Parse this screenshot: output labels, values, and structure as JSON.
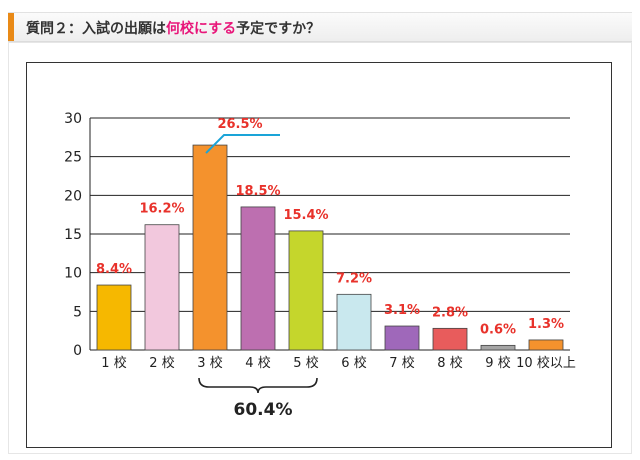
{
  "question": {
    "prefix": "質問２：入試の出願は",
    "highlight": "何校にする",
    "suffix": "予定ですか？"
  },
  "colors": {
    "accent": "#e98a17",
    "highlight": "#e8177a",
    "value_label": "#e8322b",
    "callout_line": "#1aa4d8"
  },
  "chart_data": {
    "type": "bar",
    "title": "",
    "xlabel": "",
    "ylabel": "",
    "ylim": [
      0,
      30
    ],
    "yticks": [
      "0",
      "5",
      "10",
      "15",
      "20",
      "25",
      "30"
    ],
    "grid": true,
    "categories": [
      "1 校",
      "2 校",
      "3 校",
      "4 校",
      "5 校",
      "6 校",
      "7 校",
      "8 校",
      "9 校",
      "10 校以上"
    ],
    "values": [
      8.4,
      16.2,
      26.5,
      18.5,
      15.4,
      7.2,
      3.1,
      2.8,
      0.6,
      1.3
    ],
    "labels": [
      "8.4%",
      "16.2%",
      "26.5%",
      "18.5%",
      "15.4%",
      "7.2%",
      "3.1%",
      "2.8%",
      "0.6%",
      "1.3%"
    ],
    "bar_colors": [
      "#f6b800",
      "#f2c8dd",
      "#f4922d",
      "#bd6fb0",
      "#c5d62c",
      "#c9e8ee",
      "#9f68ba",
      "#e85c5c",
      "#a5a5a5",
      "#f4922d"
    ],
    "annotation": {
      "text": "60.4%",
      "spans": [
        "3 校",
        "5 校"
      ]
    }
  }
}
